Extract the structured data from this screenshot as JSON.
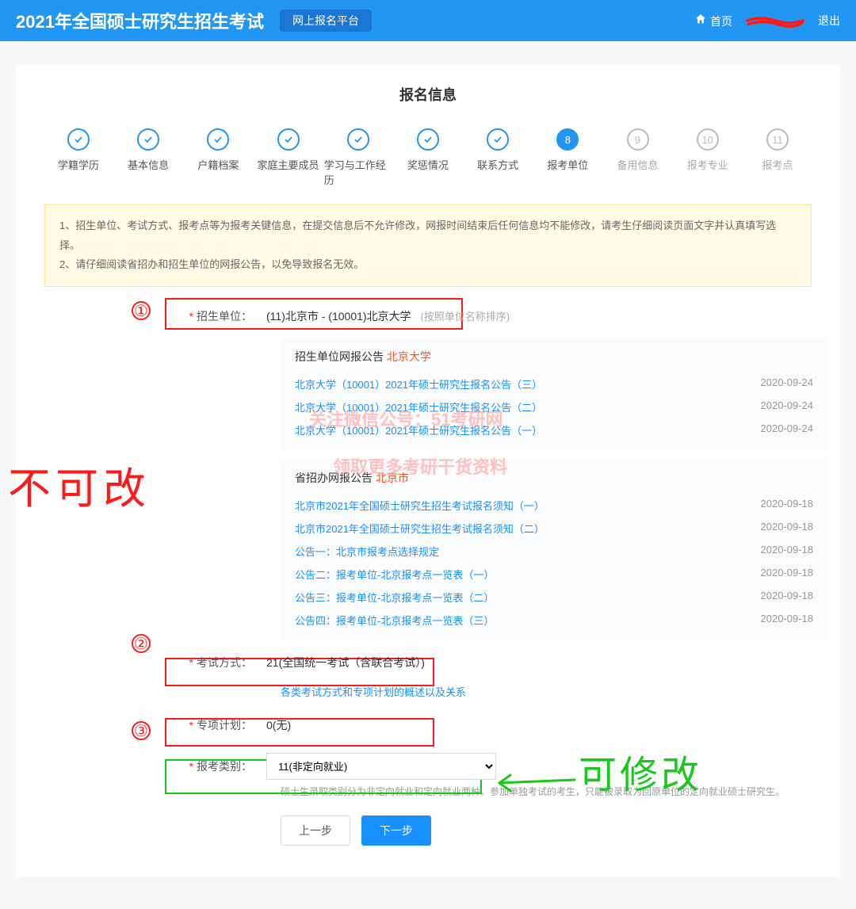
{
  "header": {
    "title": "2021年全国硕士研究生招生考试",
    "badge": "网上报名平台",
    "home": "首页",
    "logout": "退出"
  },
  "panel_title": "报名信息",
  "steps": [
    {
      "label": "学籍学历",
      "state": "done"
    },
    {
      "label": "基本信息",
      "state": "done"
    },
    {
      "label": "户籍档案",
      "state": "done"
    },
    {
      "label": "家庭主要成员",
      "state": "done"
    },
    {
      "label": "学习与工作经历",
      "state": "done"
    },
    {
      "label": "奖惩情况",
      "state": "done"
    },
    {
      "label": "联系方式",
      "state": "done"
    },
    {
      "label": "报考单位",
      "state": "active",
      "num": "8"
    },
    {
      "label": "备用信息",
      "state": "future",
      "num": "9"
    },
    {
      "label": "报考专业",
      "state": "future",
      "num": "10"
    },
    {
      "label": "报考点",
      "state": "future",
      "num": "11"
    }
  ],
  "warnings": [
    "1、招生单位、考试方式、报考点等为报考关键信息，在提交信息后不允许修改，网报时间结束后任何信息均不能修改，请考生仔细阅读页面文字并认真填写选择。",
    "2、请仔细阅读省招办和招生单位的网报公告，以免导致报名无效。"
  ],
  "fields": {
    "unit": {
      "label": "招生单位：",
      "value": "(11)北京市 - (10001)北京大学",
      "hint": "(按照单位名称排序)"
    },
    "exam": {
      "label": "考试方式：",
      "value": "21(全国统一考试（含联合考试）)"
    },
    "plan": {
      "label": "专项计划：",
      "value": "0(无)"
    },
    "category": {
      "label": "报考类别：",
      "selected": "11(非定向就业)"
    }
  },
  "unit_notices": {
    "head_prefix": "招生单位网报公告",
    "head_hl": "北京大学",
    "items": [
      {
        "title": "北京大学（10001）2021年硕士研究生报名公告（三）",
        "date": "2020-09-24"
      },
      {
        "title": "北京大学（10001）2021年硕士研究生报名公告（二）",
        "date": "2020-09-24"
      },
      {
        "title": "北京大学（10001）2021年硕士研究生报名公告（一）",
        "date": "2020-09-24"
      }
    ]
  },
  "prov_notices": {
    "head_prefix": "省招办网报公告",
    "head_hl": "北京市",
    "items": [
      {
        "title": "北京市2021年全国硕士研究生招生考试报名须知（一）",
        "date": "2020-09-18"
      },
      {
        "title": "北京市2021年全国硕士研究生招生考试报名须知（二）",
        "date": "2020-09-18"
      },
      {
        "title": "公告一：北京市报考点选择规定",
        "date": "2020-09-18"
      },
      {
        "title": "公告二：报考单位-北京报考点一览表（一）",
        "date": "2020-09-18"
      },
      {
        "title": "公告三：报考单位-北京报考点一览表（二）",
        "date": "2020-09-18"
      },
      {
        "title": "公告四：报考单位-北京报考点一览表（三）",
        "date": "2020-09-18"
      }
    ]
  },
  "exam_link": "各类考试方式和专项计划的概述以及关系",
  "category_note": "硕士生录取类别分为非定向就业和定向就业两种。参加单独考试的考生，只能被录取为回原单位的定向就业硕士研究生。",
  "buttons": {
    "prev": "上一步",
    "next": "下一步"
  },
  "annotations": {
    "nums": [
      "①",
      "②",
      "③"
    ],
    "red_text": "不可改",
    "green_text": "可修改",
    "box_color_red": "#ff1a1a",
    "box_color_green": "#19c919"
  },
  "watermark": {
    "line1": "关注微信公号：51考研网",
    "line2": "领取更多考研干货资料"
  }
}
